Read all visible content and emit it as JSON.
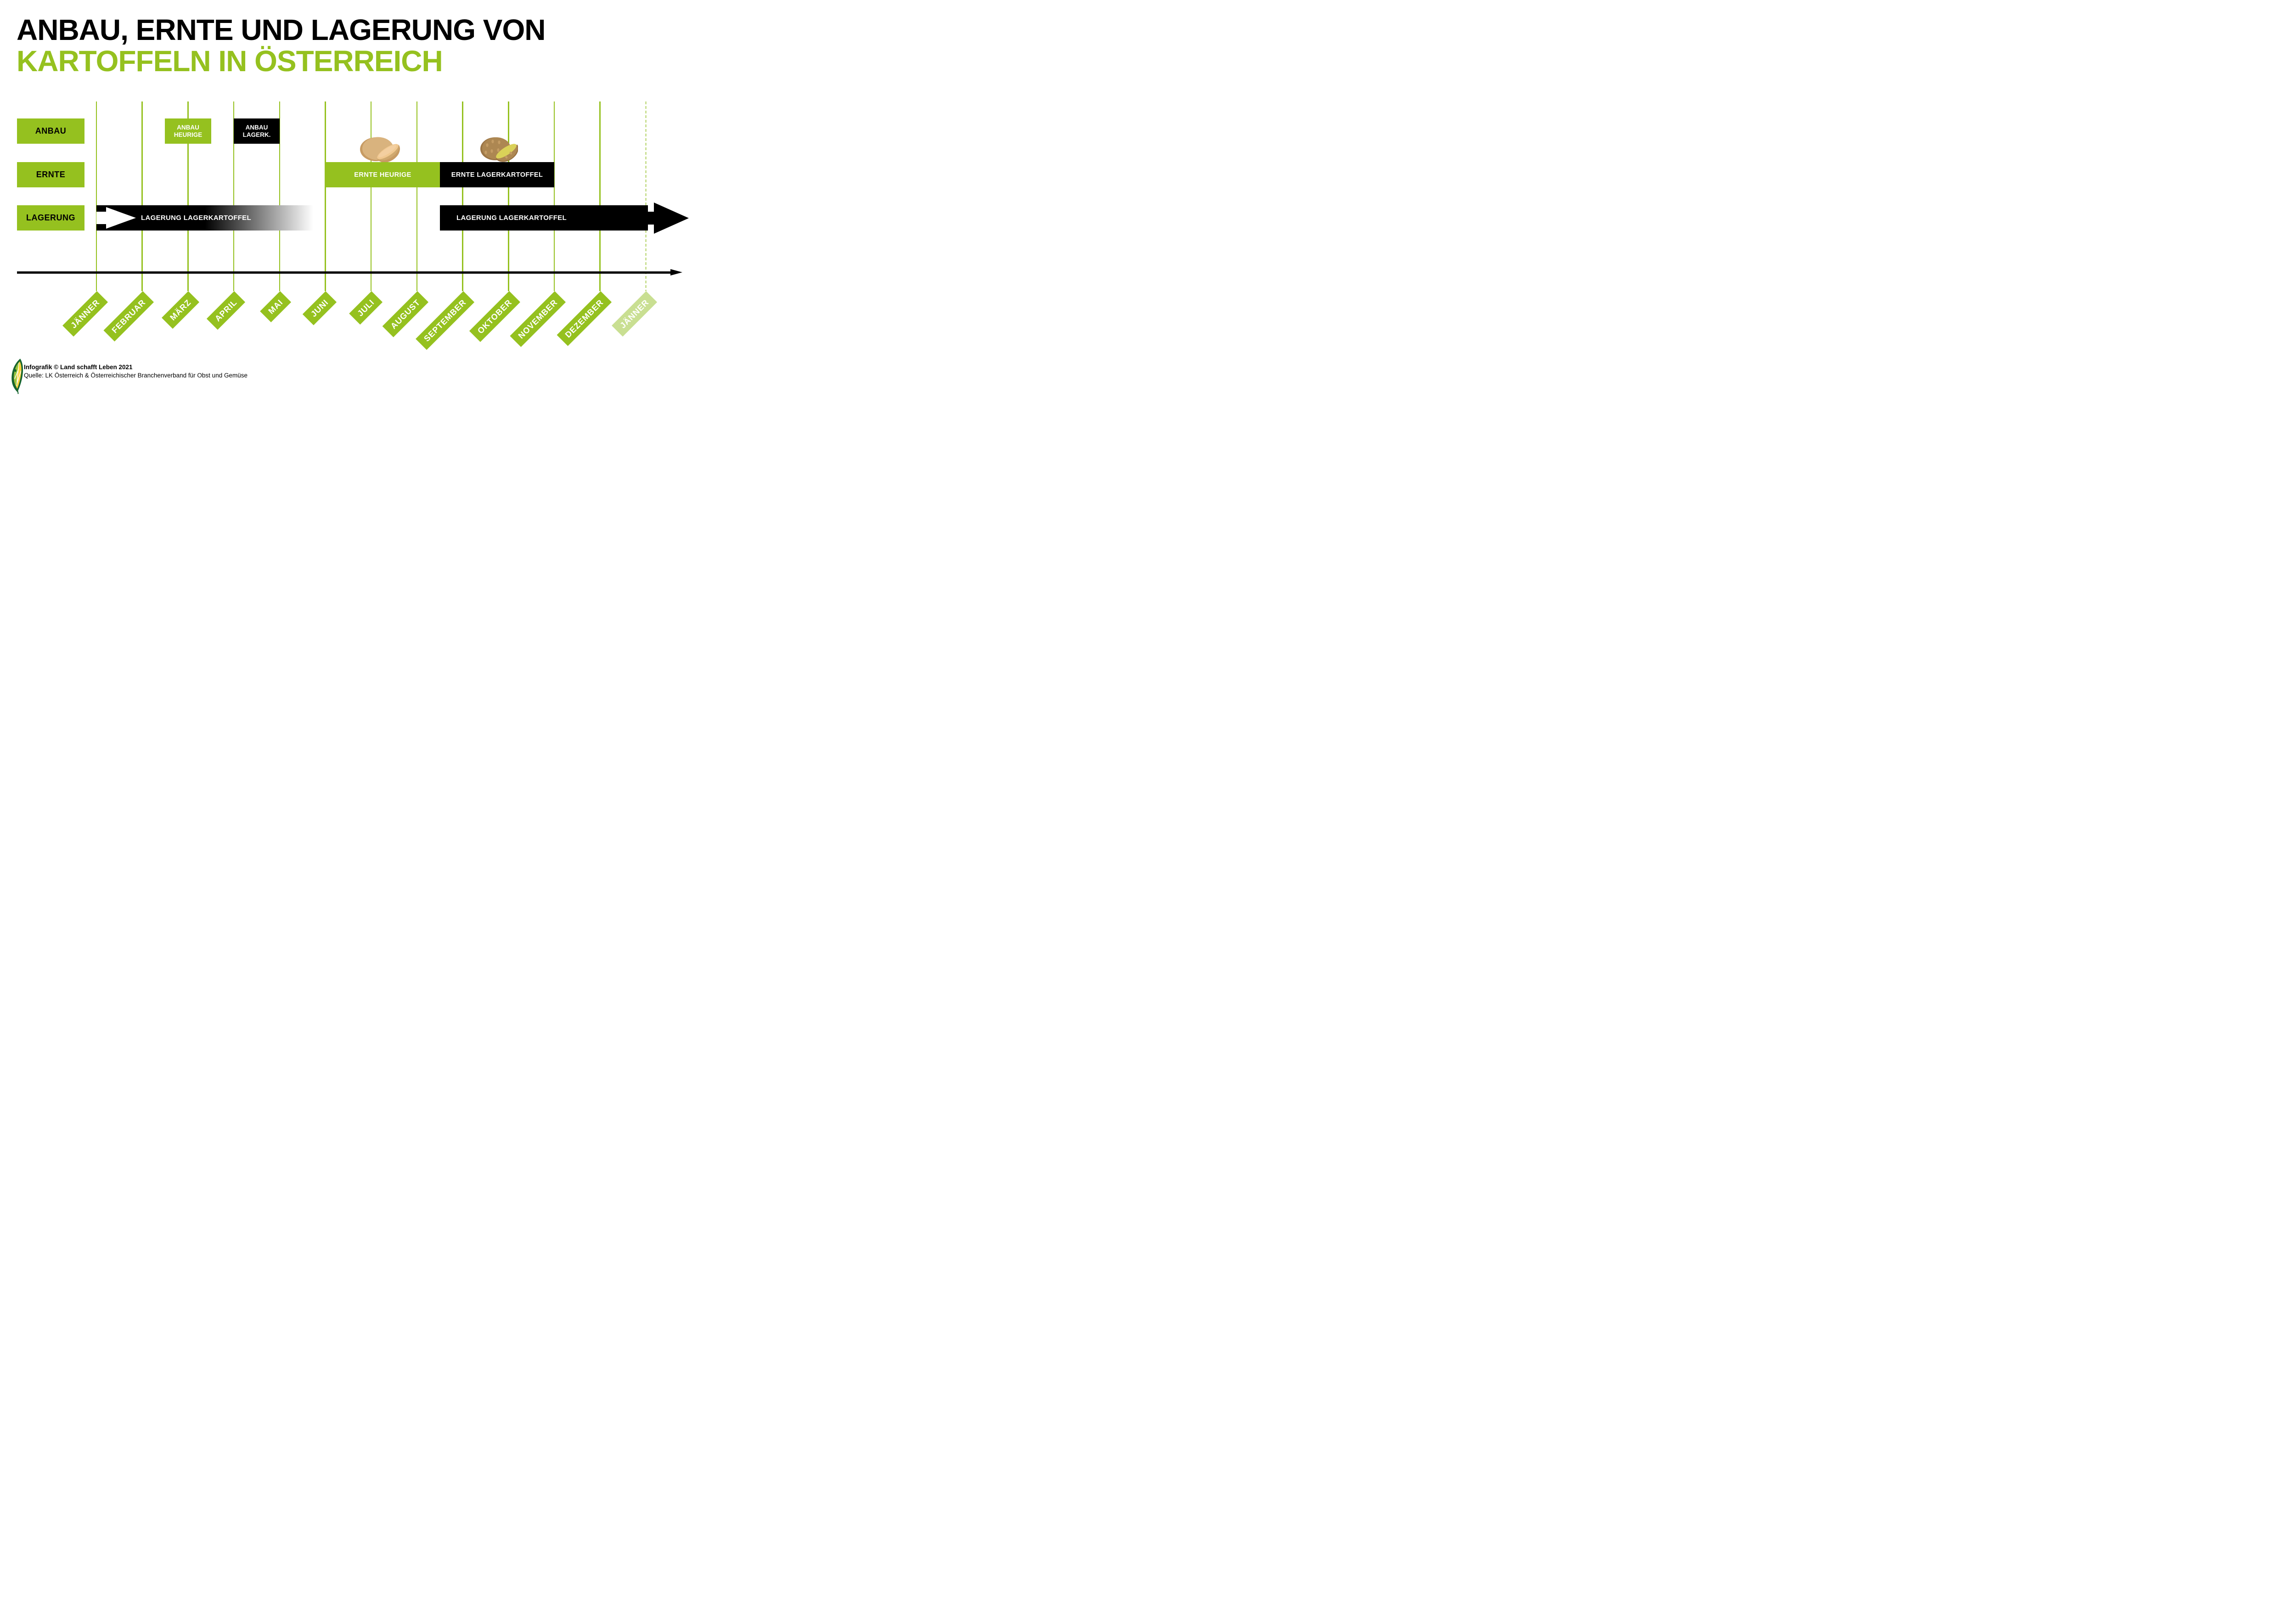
{
  "title": {
    "line1": "ANBAU, ERNTE UND LAGERUNG VON",
    "line2": "KARTOFFELN IN ÖSTERREICH"
  },
  "rows": {
    "anbau_label": "ANBAU",
    "ernte_label": "ERNTE",
    "lagerung_label": "LAGERUNG"
  },
  "boxes": {
    "anbau_heurige_line1": "ANBAU",
    "anbau_heurige_line2": "HEURIGE",
    "anbau_lagerk_line1": "ANBAU",
    "anbau_lagerk_line2": "LAGERK.",
    "ernte_heurige": "ERNTE HEURIGE",
    "ernte_lagerkartoffel": "ERNTE LAGERKARTOFFEL",
    "lagerung_links": "LAGERUNG LAGERKARTOFFEL",
    "lagerung_rechts": "LAGERUNG LAGERKARTOFFEL"
  },
  "months": [
    {
      "label": "JÄNNER",
      "faded": false
    },
    {
      "label": "FEBRUAR",
      "faded": false
    },
    {
      "label": "MÄRZ",
      "faded": false
    },
    {
      "label": "APRIL",
      "faded": false
    },
    {
      "label": "MAI",
      "faded": false
    },
    {
      "label": "JUNI",
      "faded": false
    },
    {
      "label": "JULI",
      "faded": false
    },
    {
      "label": "AUGUST",
      "faded": false
    },
    {
      "label": "SEPTEMBER",
      "faded": false
    },
    {
      "label": "OKTOBER",
      "faded": false
    },
    {
      "label": "NOVEMBER",
      "faded": false
    },
    {
      "label": "DEZEMBER",
      "faded": false
    },
    {
      "label": "JÄNNER",
      "faded": true
    }
  ],
  "icons": {
    "potato_heurige": "potato-heurige-icon",
    "potato_lager": "potato-lager-icon",
    "logo": "leaf-logo-icon"
  },
  "footer": {
    "credit": "Infografik © Land schafft Leben 2021",
    "source": "Quelle: LK Österreich & Österreichischer Branchenverband für Obst und Gemüse"
  },
  "colors": {
    "green": "#95C11F",
    "green_faded": "#C9DF92",
    "black": "#000000",
    "white": "#FFFFFF",
    "potato_tan": "#D9B37E",
    "potato_tan_rim": "#C79B63",
    "potato_cut_face": "#F0C890",
    "potato_brown": "#AD8752",
    "potato_brown_rim": "#97703F",
    "potato_spots": "#C49C64",
    "potato_flesh_yellow": "#DAD158"
  },
  "chart_data": {
    "type": "table",
    "title": "Anbau, Ernte und Lagerung von Kartoffeln in Österreich",
    "x_axis": {
      "categories": [
        "JÄNNER",
        "FEBRUAR",
        "MÄRZ",
        "APRIL",
        "MAI",
        "JUNI",
        "JULI",
        "AUGUST",
        "SEPTEMBER",
        "OKTOBER",
        "NOVEMBER",
        "DEZEMBER",
        "JÄNNER"
      ],
      "scale_note": "month positions 1-13, 13 = Jänner of following year (faded, dashed line)"
    },
    "series": [
      {
        "row": "ANBAU",
        "label": "ANBAU HEURIGE",
        "start_month": 2.5,
        "end_month": 3.5,
        "color": "#95C11F"
      },
      {
        "row": "ANBAU",
        "label": "ANBAU LAGERK.",
        "start_month": 4,
        "end_month": 5,
        "color": "#000000"
      },
      {
        "row": "ERNTE",
        "label": "ERNTE HEURIGE",
        "start_month": 6,
        "end_month": 8.5,
        "color": "#95C11F"
      },
      {
        "row": "ERNTE",
        "label": "ERNTE LAGERKARTOFFEL",
        "start_month": 8.5,
        "end_month": 11,
        "color": "#000000"
      },
      {
        "row": "LAGERUNG",
        "label": "LAGERUNG LAGERKARTOFFEL",
        "start_month": 1,
        "end_month": 6,
        "color": "#000000",
        "style": "fades out to white toward Juni, white arrow at start"
      },
      {
        "row": "LAGERUNG",
        "label": "LAGERUNG LAGERKARTOFFEL",
        "start_month": 8.5,
        "end_month": 13,
        "color": "#000000",
        "style": "solid bar with arrowhead pointing right past Jänner"
      }
    ],
    "legend_position": "none",
    "grid": "vertical month lines, green"
  }
}
